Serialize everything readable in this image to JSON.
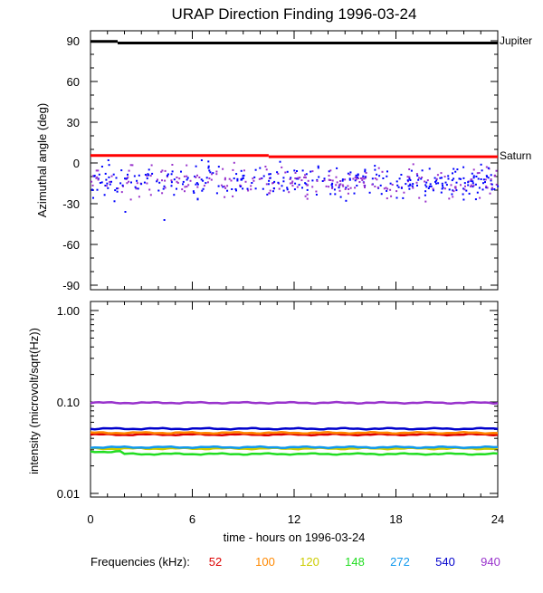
{
  "chart_data": [
    {
      "type": "scatter",
      "title": "URAP Direction Finding  1996-03-24",
      "ylabel": "Azimuthal angle (deg)",
      "xlim": [
        0,
        24
      ],
      "ylim": [
        -90,
        90
      ],
      "xticks": [
        0,
        6,
        12,
        18,
        24
      ],
      "yticks": [
        90,
        60,
        30,
        0,
        -30,
        -60,
        -90
      ],
      "ytick_labels": [
        "90",
        "60",
        "30",
        "0",
        "-30",
        "-60",
        "-90"
      ],
      "reference_lines": [
        {
          "name": "Jupiter",
          "color": "#000000",
          "segments": [
            [
              0,
              1.6,
              89.5
            ],
            [
              1.6,
              24,
              88.3
            ]
          ]
        },
        {
          "name": "Saturn",
          "color": "#ff0000",
          "segments": [
            [
              0,
              10.5,
              5.5
            ],
            [
              10.5,
              24,
              4.6
            ]
          ]
        }
      ],
      "scatter_summary": {
        "colors": [
          "#0000ff",
          "#9933cc"
        ],
        "x_range": [
          0,
          24
        ],
        "center_deg": -14,
        "spread_deg": 10,
        "outliers": [
          [
            1.0,
            2
          ],
          [
            2.0,
            -36
          ],
          [
            4.3,
            -42
          ],
          [
            6.5,
            2
          ]
        ]
      }
    },
    {
      "type": "line",
      "ylabel": "intensity (microvolt/sqrt(Hz))",
      "xlabel": "time - hours on 1996-03-24",
      "xlim": [
        0,
        24
      ],
      "ylim": [
        0.01,
        1.0
      ],
      "yscale": "log",
      "xticks": [
        0,
        6,
        12,
        18,
        24
      ],
      "xtick_labels": [
        "0",
        "6",
        "12",
        "18",
        "24"
      ],
      "yticks": [
        1.0,
        0.1,
        0.01
      ],
      "ytick_labels": [
        "1.00",
        "0.10",
        "0.01"
      ],
      "series": [
        {
          "name": "52",
          "color": "#dd0000",
          "value": 0.044
        },
        {
          "name": "100",
          "color": "#ff8800",
          "value": 0.046
        },
        {
          "name": "120",
          "color": "#cccc00",
          "value": 0.031
        },
        {
          "name": "148",
          "color": "#22dd22",
          "value": 0.027
        },
        {
          "name": "272",
          "color": "#1199ee",
          "value": 0.032
        },
        {
          "name": "540",
          "color": "#0000cc",
          "value": 0.051
        },
        {
          "name": "940",
          "color": "#9933cc",
          "value": 0.098
        }
      ]
    }
  ],
  "legend": {
    "label": "Frequencies (kHz):",
    "items": [
      "52",
      "100",
      "120",
      "148",
      "272",
      "540",
      "940"
    ]
  }
}
